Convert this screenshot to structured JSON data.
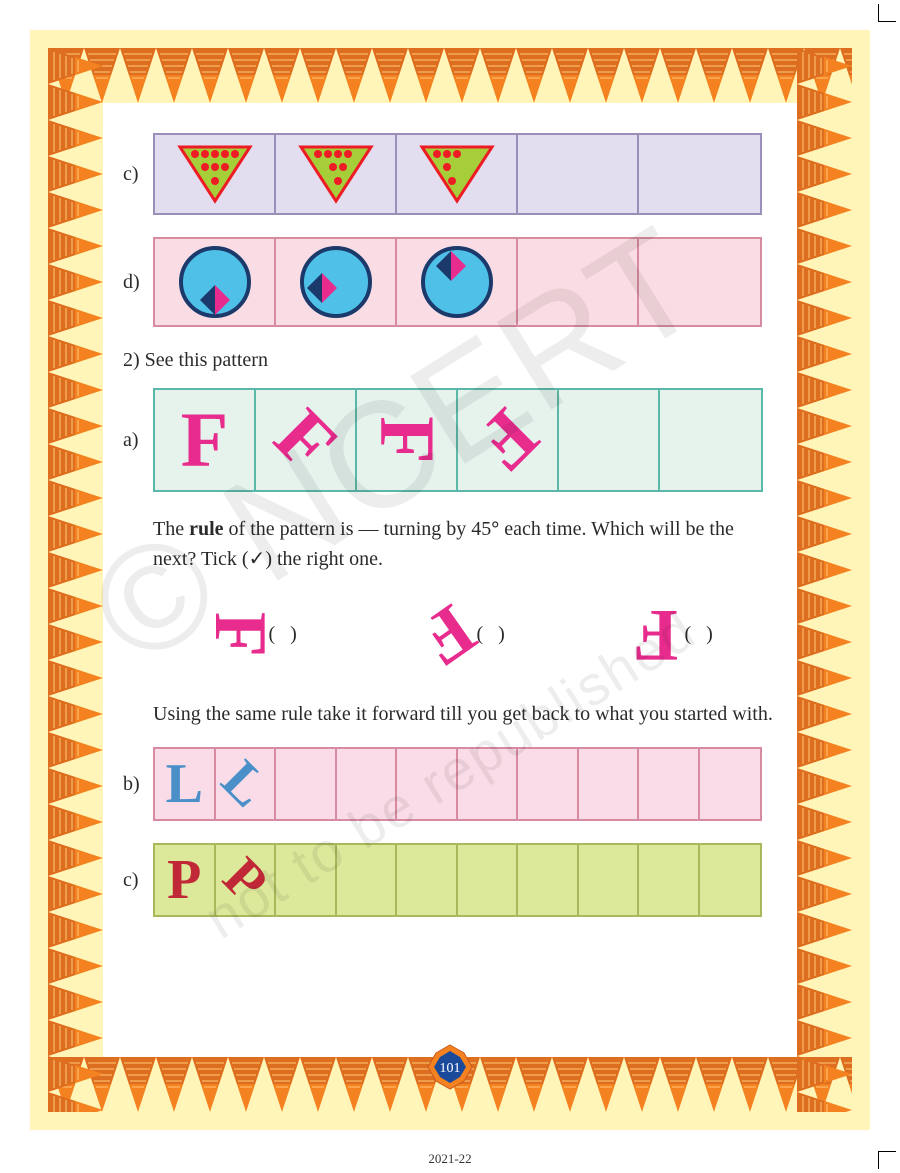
{
  "page_number": "101",
  "footer_year": "2021-22",
  "watermark_big": "© NCERT",
  "watermark_small": "not to be republished",
  "labels": {
    "c": "c)",
    "d": "d)",
    "a": "a)",
    "b": "b)",
    "c2": "c)"
  },
  "q2_label": "2)   See this pattern",
  "body_text_1a": "The ",
  "body_text_1b": "rule",
  "body_text_1c": " of the pattern is — turning by 45",
  "body_text_1d": " each time. Which will be the next? Tick (✓) the right one.",
  "body_text_2": "Using the same rule take it forward till you get back to what you started with.",
  "paren_l": "(",
  "paren_r": ")",
  "degree": "°",
  "row_c": {
    "cell_count": 5,
    "triangle": {
      "fill": "#a6ce39",
      "stroke": "#ed1c24",
      "dot_color": "#ed1c24",
      "dots": [
        [
          [
            30,
            15
          ],
          [
            40,
            15
          ],
          [
            50,
            15
          ],
          [
            60,
            15
          ],
          [
            70,
            15
          ],
          [
            40,
            28
          ],
          [
            50,
            28
          ],
          [
            60,
            28
          ],
          [
            50,
            42
          ]
        ],
        [
          [
            32,
            15
          ],
          [
            42,
            15
          ],
          [
            52,
            15
          ],
          [
            62,
            15
          ],
          [
            47,
            28
          ],
          [
            57,
            28
          ],
          [
            52,
            42
          ]
        ],
        [
          [
            30,
            15
          ],
          [
            40,
            15
          ],
          [
            50,
            15
          ],
          [
            40,
            28
          ],
          [
            45,
            42
          ]
        ]
      ]
    }
  },
  "row_d": {
    "cell_count": 5,
    "circle": {
      "fill": "#4fc1e9",
      "stroke": "#1b3a6b",
      "r": 34
    },
    "diamond": {
      "pink": "#e82c8e",
      "blue": "#1b3a6b",
      "size": 15,
      "positions": [
        [
          0,
          18
        ],
        [
          -14,
          6
        ],
        [
          -6,
          -16
        ]
      ]
    }
  },
  "row_a": {
    "cell_count": 6,
    "letters": [
      "F",
      "F",
      "F",
      "F"
    ],
    "rotations": [
      0,
      45,
      90,
      135
    ]
  },
  "options": {
    "letters": [
      "F",
      "F",
      "F"
    ],
    "rotations": [
      90,
      145,
      180
    ]
  },
  "row_b": {
    "cell_count": 10,
    "letter": "L",
    "rotations": [
      0,
      45
    ]
  },
  "row_cc": {
    "cell_count": 10,
    "letter": "P",
    "rotations": [
      0,
      45
    ]
  },
  "colors": {
    "page_bg": "#fff5b8",
    "border_orange": "#f58220",
    "border_dark": "#c85a1e",
    "border_light": "#ffc87a"
  }
}
